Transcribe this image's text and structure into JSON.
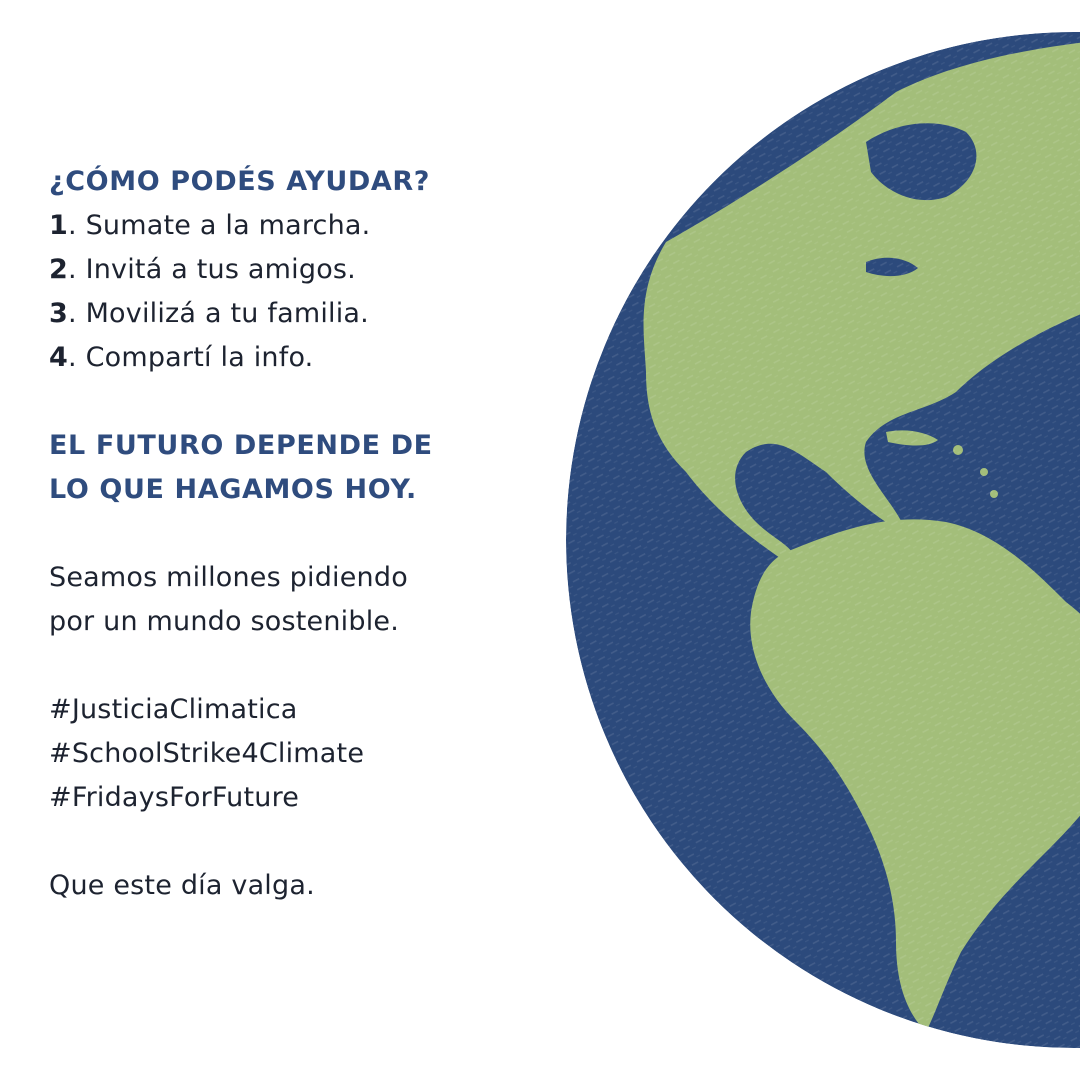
{
  "section_help": {
    "heading": "¿CÓMO PODÉS AYUDAR?",
    "steps": [
      {
        "number": "1",
        "text": ". Sumate a la marcha."
      },
      {
        "number": "2",
        "text": ". Invitá a tus amigos."
      },
      {
        "number": "3",
        "text": ". Movilizá a tu familia."
      },
      {
        "number": "4",
        "text": ". Compartí la info."
      }
    ]
  },
  "future_heading": {
    "line1": "EL FUTURO DEPENDE DE",
    "line2": "LO QUE HAGAMOS HOY."
  },
  "call_to_action": {
    "line1": "Seamos millones pidiendo",
    "line2": "por un mundo sostenible."
  },
  "hashtags": [
    "#JusticiaClimatica",
    "#SchoolStrike4Climate",
    "#FridaysForFuture"
  ],
  "closing": "Que este día valga.",
  "colors": {
    "heading": "#2f4c7e",
    "body_text": "#1d2330",
    "ocean": "#2c4a7c",
    "land": "#a3be7a",
    "background": "#ffffff"
  },
  "illustration": "globe-americas-icon"
}
